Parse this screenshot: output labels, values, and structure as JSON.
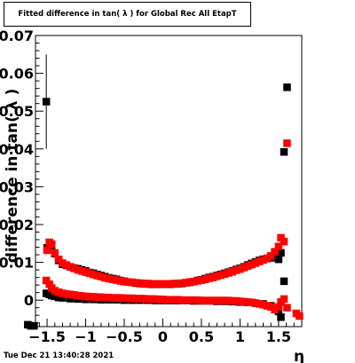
{
  "title": "Fitted difference in tan( λ ) for Global Rec All EtapT",
  "timestamp": "Tue Dec 21 13:40:28 2021",
  "chart_data": {
    "type": "scatter",
    "title": "Fitted difference in tan( λ ) for Global Rec All EtapT",
    "xlabel": "η",
    "ylabel": "difference in tan( λ )",
    "xlim": [
      -1.65,
      1.8
    ],
    "ylim": [
      -0.007,
      0.07
    ],
    "grid": true,
    "x_ticks": [
      -1.5,
      -1,
      -0.5,
      0,
      0.5,
      1,
      1.5
    ],
    "x_tick_labels": [
      "−1.5",
      "−1",
      "−0.5",
      "0",
      "0.5",
      "1",
      "1.5"
    ],
    "y_ticks": [
      0,
      0.01,
      0.02,
      0.03,
      0.04,
      0.05,
      0.06,
      0.07
    ],
    "y_tick_labels": [
      "0",
      "0.01",
      "0.02",
      "0.03",
      "0.04",
      "0.05",
      "0.06",
      "0.07"
    ],
    "red_lines": [
      1.6,
      1.75,
      1.78
    ],
    "series": [
      {
        "color": "#000000",
        "marker": "square",
        "points": [
          [
            -1.75,
            -0.0065,
            0
          ],
          [
            -1.71,
            -0.0068,
            0
          ],
          [
            -1.67,
            -0.0068,
            0
          ],
          [
            -1.51,
            0.0525,
            0.0125
          ],
          [
            -1.5,
            0.0138,
            0.001
          ],
          [
            -1.47,
            0.0152,
            0.001
          ],
          [
            -1.44,
            0.0145,
            0.001
          ],
          [
            -1.4,
            0.0123,
            0
          ],
          [
            -1.35,
            0.0105,
            0
          ],
          [
            -1.3,
            0.0095,
            0
          ],
          [
            -1.25,
            0.0092,
            0
          ],
          [
            -1.2,
            0.0088,
            0
          ],
          [
            -1.15,
            0.0085,
            0
          ],
          [
            -1.1,
            0.0083,
            0
          ],
          [
            -1.05,
            0.008,
            0
          ],
          [
            -1.0,
            0.0077,
            0
          ],
          [
            -0.95,
            0.0073,
            0
          ],
          [
            -0.9,
            0.0071,
            0
          ],
          [
            -0.85,
            0.0068,
            0
          ],
          [
            -0.8,
            0.0065,
            0
          ],
          [
            -0.75,
            0.0062,
            0
          ],
          [
            -0.7,
            0.0059,
            0
          ],
          [
            -0.65,
            0.0057,
            0
          ],
          [
            -0.6,
            0.0055,
            0
          ],
          [
            -0.55,
            0.0052,
            0
          ],
          [
            -0.5,
            0.005,
            0
          ],
          [
            -0.45,
            0.0048,
            0
          ],
          [
            -0.4,
            0.0047,
            0
          ],
          [
            -0.35,
            0.0045,
            0
          ],
          [
            -0.3,
            0.0044,
            0
          ],
          [
            -0.25,
            0.0043,
            0
          ],
          [
            -0.2,
            0.0043,
            0
          ],
          [
            -0.15,
            0.0042,
            0
          ],
          [
            -0.1,
            0.0042,
            0
          ],
          [
            -0.05,
            0.0042,
            0
          ],
          [
            0.0,
            0.0042,
            0
          ],
          [
            0.05,
            0.0042,
            0
          ],
          [
            0.1,
            0.0042,
            0
          ],
          [
            0.15,
            0.0043,
            0
          ],
          [
            0.2,
            0.0043,
            0
          ],
          [
            0.25,
            0.0044,
            0
          ],
          [
            0.3,
            0.0046,
            0
          ],
          [
            0.35,
            0.0047,
            0
          ],
          [
            0.4,
            0.0049,
            0
          ],
          [
            0.45,
            0.0052,
            0
          ],
          [
            0.5,
            0.0054,
            0
          ],
          [
            0.55,
            0.0057,
            0
          ],
          [
            0.6,
            0.006,
            0
          ],
          [
            0.65,
            0.0062,
            0
          ],
          [
            0.7,
            0.0065,
            0
          ],
          [
            0.75,
            0.0068,
            0
          ],
          [
            0.8,
            0.0071,
            0
          ],
          [
            0.85,
            0.0074,
            0
          ],
          [
            0.9,
            0.0077,
            0
          ],
          [
            0.95,
            0.0081,
            0
          ],
          [
            1.0,
            0.0084,
            0
          ],
          [
            1.05,
            0.0088,
            0
          ],
          [
            1.1,
            0.0093,
            0
          ],
          [
            1.15,
            0.0097,
            0
          ],
          [
            1.2,
            0.0101,
            0
          ],
          [
            1.25,
            0.0105,
            0
          ],
          [
            1.3,
            0.0108,
            0
          ],
          [
            1.35,
            0.011,
            0
          ],
          [
            1.4,
            0.0112,
            0
          ],
          [
            1.45,
            0.0115,
            0
          ],
          [
            1.5,
            0.0108,
            0
          ],
          [
            1.53,
            0.0125,
            0
          ],
          [
            1.57,
            0.0392,
            0.0008
          ],
          [
            1.61,
            0.0563,
            0
          ],
          [
            -1.51,
            0.0018,
            0
          ],
          [
            -1.47,
            0.0015,
            0
          ],
          [
            -1.44,
            0.0012,
            0
          ],
          [
            -1.4,
            0.001,
            0
          ],
          [
            -1.35,
            0.0007,
            0
          ],
          [
            -1.3,
            0.0006,
            0
          ],
          [
            -1.2,
            0.0004,
            0
          ],
          [
            -1.1,
            0.0003,
            0
          ],
          [
            -1.0,
            0.0002,
            0
          ],
          [
            -0.9,
            0.0002,
            0
          ],
          [
            -0.8,
            0.0001,
            0
          ],
          [
            -0.7,
            0.0001,
            0
          ],
          [
            -0.6,
            0.0001,
            0
          ],
          [
            -0.5,
            0.0,
            0
          ],
          [
            -0.4,
            0.0,
            0
          ],
          [
            -0.3,
            0.0,
            0
          ],
          [
            -0.2,
            0.0,
            0
          ],
          [
            -0.1,
            -0.0001,
            0
          ],
          [
            0.0,
            -0.0001,
            0
          ],
          [
            0.1,
            -0.0001,
            0
          ],
          [
            0.2,
            -0.0001,
            0
          ],
          [
            0.3,
            -0.0001,
            0
          ],
          [
            0.4,
            -0.0002,
            0
          ],
          [
            0.5,
            -0.0002,
            0
          ],
          [
            0.6,
            -0.0002,
            0
          ],
          [
            0.7,
            -0.0003,
            0
          ],
          [
            0.8,
            -0.0003,
            0
          ],
          [
            0.9,
            -0.0004,
            0
          ],
          [
            1.0,
            -0.0005,
            0
          ],
          [
            1.1,
            -0.0006,
            0
          ],
          [
            1.2,
            -0.0008,
            0
          ],
          [
            1.3,
            -0.001,
            0
          ],
          [
            1.4,
            -0.0015,
            0
          ],
          [
            1.5,
            -0.003,
            0
          ],
          [
            1.53,
            -0.0045,
            0
          ],
          [
            1.57,
            0.005,
            0.001
          ]
        ]
      },
      {
        "color": "#ff0000",
        "marker": "square",
        "points": [
          [
            -1.5,
            0.0132,
            0.001
          ],
          [
            -1.47,
            0.0153,
            0.001
          ],
          [
            -1.44,
            0.0148,
            0.001
          ],
          [
            -1.4,
            0.0125,
            0
          ],
          [
            -1.35,
            0.0108,
            0
          ],
          [
            -1.3,
            0.0098,
            0
          ],
          [
            -1.25,
            0.0093,
            0
          ],
          [
            -1.2,
            0.0088,
            0
          ],
          [
            -1.15,
            0.0084,
            0
          ],
          [
            -1.1,
            0.008,
            0
          ],
          [
            -1.05,
            0.0077,
            0
          ],
          [
            -1.0,
            0.0074,
            0
          ],
          [
            -0.95,
            0.0071,
            0
          ],
          [
            -0.9,
            0.0068,
            0
          ],
          [
            -0.85,
            0.0065,
            0
          ],
          [
            -0.8,
            0.0062,
            0
          ],
          [
            -0.75,
            0.0059,
            0
          ],
          [
            -0.7,
            0.0057,
            0
          ],
          [
            -0.65,
            0.0055,
            0
          ],
          [
            -0.6,
            0.0053,
            0
          ],
          [
            -0.55,
            0.0051,
            0
          ],
          [
            -0.5,
            0.0049,
            0
          ],
          [
            -0.45,
            0.0048,
            0
          ],
          [
            -0.4,
            0.0047,
            0
          ],
          [
            -0.35,
            0.0046,
            0
          ],
          [
            -0.3,
            0.0045,
            0
          ],
          [
            -0.25,
            0.0044,
            0
          ],
          [
            -0.2,
            0.0044,
            0
          ],
          [
            -0.15,
            0.0043,
            0
          ],
          [
            -0.1,
            0.0043,
            0
          ],
          [
            -0.05,
            0.0043,
            0
          ],
          [
            0.0,
            0.0043,
            0
          ],
          [
            0.05,
            0.0043,
            0
          ],
          [
            0.1,
            0.0043,
            0
          ],
          [
            0.15,
            0.0044,
            0
          ],
          [
            0.2,
            0.0044,
            0
          ],
          [
            0.25,
            0.0045,
            0
          ],
          [
            0.3,
            0.0046,
            0
          ],
          [
            0.35,
            0.0048,
            0
          ],
          [
            0.4,
            0.0049,
            0
          ],
          [
            0.45,
            0.0051,
            0
          ],
          [
            0.5,
            0.0053,
            0
          ],
          [
            0.55,
            0.0055,
            0
          ],
          [
            0.6,
            0.0058,
            0
          ],
          [
            0.65,
            0.006,
            0
          ],
          [
            0.7,
            0.0063,
            0
          ],
          [
            0.75,
            0.0066,
            0
          ],
          [
            0.8,
            0.0069,
            0
          ],
          [
            0.85,
            0.0072,
            0
          ],
          [
            0.9,
            0.0075,
            0
          ],
          [
            0.95,
            0.0079,
            0
          ],
          [
            1.0,
            0.0082,
            0
          ],
          [
            1.05,
            0.0086,
            0
          ],
          [
            1.1,
            0.009,
            0
          ],
          [
            1.15,
            0.0094,
            0
          ],
          [
            1.2,
            0.0098,
            0
          ],
          [
            1.25,
            0.0102,
            0
          ],
          [
            1.3,
            0.0106,
            0
          ],
          [
            1.35,
            0.0111,
            0
          ],
          [
            1.4,
            0.0117,
            0
          ],
          [
            1.45,
            0.0128,
            0
          ],
          [
            1.5,
            0.0142,
            0
          ],
          [
            1.53,
            0.0165,
            0
          ],
          [
            1.57,
            0.0155,
            0
          ],
          [
            1.61,
            0.0415,
            0
          ],
          [
            -1.51,
            0.0052,
            0
          ],
          [
            -1.47,
            0.0042,
            0
          ],
          [
            -1.44,
            0.0032,
            0
          ],
          [
            -1.4,
            0.0025,
            0
          ],
          [
            -1.35,
            0.0021,
            0
          ],
          [
            -1.3,
            0.0018,
            0
          ],
          [
            -1.25,
            0.0016,
            0
          ],
          [
            -1.2,
            0.0015,
            0
          ],
          [
            -1.15,
            0.0014,
            0
          ],
          [
            -1.1,
            0.0012,
            0
          ],
          [
            -1.05,
            0.0011,
            0
          ],
          [
            -1.0,
            0.001,
            0
          ],
          [
            -0.95,
            0.0009,
            0
          ],
          [
            -0.9,
            0.0009,
            0
          ],
          [
            -0.85,
            0.0008,
            0
          ],
          [
            -0.8,
            0.0008,
            0
          ],
          [
            -0.75,
            0.0007,
            0
          ],
          [
            -0.7,
            0.0007,
            0
          ],
          [
            -0.65,
            0.0006,
            0
          ],
          [
            -0.6,
            0.0006,
            0
          ],
          [
            -0.55,
            0.0006,
            0
          ],
          [
            -0.5,
            0.0005,
            0
          ],
          [
            -0.45,
            0.0005,
            0
          ],
          [
            -0.4,
            0.0005,
            0
          ],
          [
            -0.35,
            0.0004,
            0
          ],
          [
            -0.3,
            0.0004,
            0
          ],
          [
            -0.25,
            0.0004,
            0
          ],
          [
            -0.2,
            0.0003,
            0
          ],
          [
            -0.15,
            0.0003,
            0
          ],
          [
            -0.1,
            0.0003,
            0
          ],
          [
            -0.05,
            0.0002,
            0
          ],
          [
            0.0,
            0.0002,
            0
          ],
          [
            0.05,
            0.0001,
            0
          ],
          [
            0.1,
            0.0001,
            0
          ],
          [
            0.15,
            0.0001,
            0
          ],
          [
            0.2,
            0.0001,
            0
          ],
          [
            0.25,
            0.0,
            0
          ],
          [
            0.3,
            0.0,
            0
          ],
          [
            0.35,
            0.0,
            0
          ],
          [
            0.4,
            0.0,
            0
          ],
          [
            0.45,
            0.0,
            0
          ],
          [
            0.5,
            -0.0001,
            0
          ],
          [
            0.55,
            -0.0001,
            0
          ],
          [
            0.6,
            -0.0001,
            0
          ],
          [
            0.65,
            -0.0001,
            0
          ],
          [
            0.7,
            -0.0001,
            0
          ],
          [
            0.75,
            -0.0001,
            0
          ],
          [
            0.8,
            -0.0001,
            0
          ],
          [
            0.85,
            -0.0001,
            0
          ],
          [
            0.9,
            -0.0002,
            0
          ],
          [
            0.95,
            -0.0002,
            0
          ],
          [
            1.0,
            -0.0003,
            0
          ],
          [
            1.05,
            -0.0004,
            0
          ],
          [
            1.1,
            -0.0005,
            0
          ],
          [
            1.15,
            -0.0006,
            0
          ],
          [
            1.2,
            -0.0008,
            0
          ],
          [
            1.25,
            -0.001,
            0
          ],
          [
            1.3,
            -0.0012,
            0
          ],
          [
            1.35,
            -0.0015,
            0
          ],
          [
            1.4,
            -0.0018,
            0
          ],
          [
            1.45,
            -0.0025,
            0
          ],
          [
            1.5,
            -0.0018,
            0
          ],
          [
            1.53,
            -0.0005,
            0
          ],
          [
            1.57,
            0.0003,
            0
          ],
          [
            1.61,
            -0.002,
            0
          ],
          [
            1.73,
            -0.0035,
            0
          ],
          [
            1.77,
            -0.0042,
            0
          ]
        ]
      }
    ]
  }
}
